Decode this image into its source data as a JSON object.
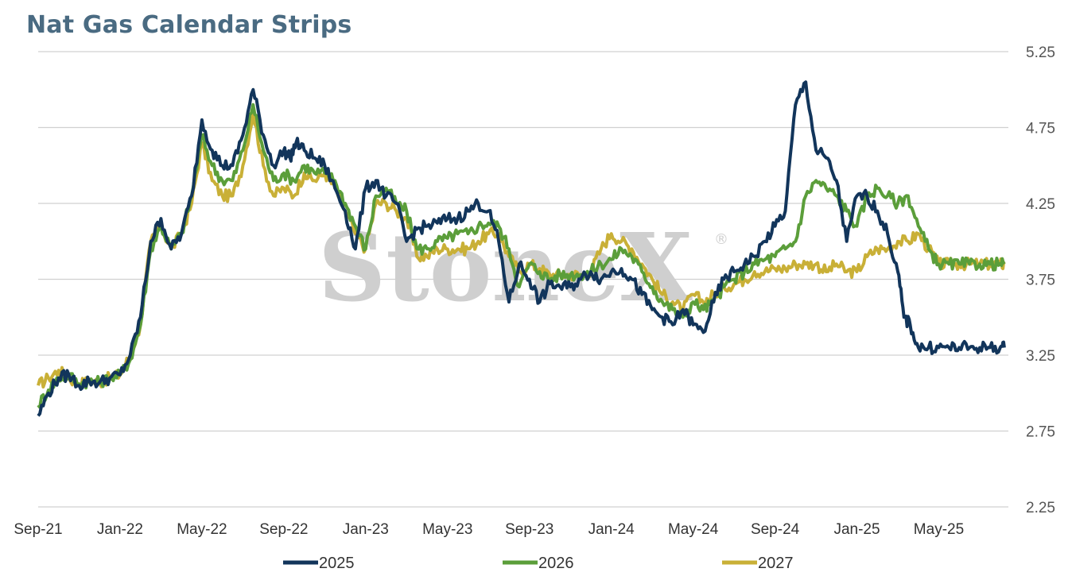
{
  "chart_data": {
    "type": "line",
    "title": "Nat Gas Calendar Strips",
    "watermark": "StoneX",
    "watermark_mark": "®",
    "ylim": [
      2.25,
      5.25
    ],
    "yticks": [
      "5.25",
      "4.75",
      "4.25",
      "3.75",
      "3.25",
      "2.75",
      "2.25"
    ],
    "ytick_values": [
      5.25,
      4.75,
      4.25,
      3.75,
      3.25,
      2.75,
      2.25
    ],
    "xtick_labels": [
      "Sep-21",
      "Jan-22",
      "May-22",
      "Sep-22",
      "Jan-23",
      "May-23",
      "Sep-23",
      "Jan-24",
      "May-24",
      "Sep-24",
      "Jan-25",
      "May-25"
    ],
    "xtick_values": [
      0,
      4,
      8,
      12,
      16,
      20,
      24,
      28,
      32,
      36,
      40,
      44
    ],
    "xlim": [
      0,
      47.4
    ],
    "grid": true,
    "legend_position": "bottom",
    "series": [
      {
        "name": "2025",
        "color": "#12355b",
        "x": [
          0,
          0.5,
          1,
          1.5,
          2,
          2.5,
          3,
          3.5,
          4,
          4.5,
          5,
          5.5,
          6,
          6.5,
          7,
          7.5,
          8,
          8.5,
          9,
          9.5,
          10,
          10.5,
          11,
          11.5,
          12,
          12.3,
          12.6,
          13,
          13.5,
          14,
          14.5,
          15,
          15.5,
          16,
          16.5,
          17,
          17.5,
          18,
          18.5,
          19,
          19.5,
          20,
          20.5,
          21,
          21.5,
          22,
          22.5,
          23,
          23.5,
          24,
          24.5,
          25,
          25.5,
          26,
          26.5,
          27,
          27.5,
          28,
          28.5,
          29,
          29.5,
          30,
          30.5,
          31,
          31.5,
          32,
          32.5,
          33,
          33.5,
          34,
          34.5,
          35,
          35.5,
          36,
          36.5,
          37,
          37.5,
          38,
          38.5,
          39,
          39.5,
          40,
          40.5,
          41,
          41.5,
          42,
          42.3,
          42.6,
          43,
          43.5,
          44,
          44.5,
          45,
          45.5,
          46,
          46.5,
          47,
          47.2
        ],
        "y": [
          2.85,
          3.0,
          3.1,
          3.12,
          3.05,
          3.08,
          3.07,
          3.1,
          3.12,
          3.25,
          3.5,
          4.0,
          4.15,
          3.95,
          4.05,
          4.3,
          4.8,
          4.6,
          4.5,
          4.5,
          4.7,
          5.0,
          4.7,
          4.5,
          4.6,
          4.55,
          4.65,
          4.6,
          4.55,
          4.5,
          4.35,
          4.2,
          3.95,
          4.35,
          4.4,
          4.3,
          4.25,
          4.0,
          4.08,
          4.1,
          4.12,
          4.15,
          4.15,
          4.2,
          4.25,
          4.2,
          4.0,
          3.6,
          3.85,
          3.75,
          3.6,
          3.72,
          3.7,
          3.7,
          3.75,
          3.8,
          3.75,
          3.8,
          3.82,
          3.75,
          3.65,
          3.55,
          3.5,
          3.45,
          3.55,
          3.45,
          3.4,
          3.6,
          3.75,
          3.8,
          3.85,
          3.9,
          4.0,
          4.1,
          4.2,
          4.9,
          5.05,
          4.6,
          4.55,
          4.4,
          4.0,
          4.3,
          4.3,
          4.2,
          4.05,
          3.8,
          3.5,
          3.45,
          3.3,
          3.3,
          3.3,
          3.3,
          3.3,
          3.3,
          3.3,
          3.3,
          3.3,
          3.3
        ],
        "marks": [
          0.0,
          3.0
        ]
      },
      {
        "name": "2026",
        "color": "#5b9e3a",
        "x": [
          0,
          0.5,
          1,
          1.5,
          2,
          2.5,
          3,
          3.5,
          4,
          4.5,
          5,
          5.5,
          6,
          6.5,
          7,
          7.5,
          8,
          8.5,
          9,
          9.5,
          10,
          10.5,
          11,
          11.5,
          12,
          12.5,
          13,
          13.5,
          14,
          14.5,
          15,
          15.5,
          16,
          16.5,
          17,
          17.5,
          18,
          18.5,
          19,
          19.5,
          20,
          20.5,
          21,
          21.5,
          22,
          22.5,
          23,
          23.5,
          24,
          24.5,
          25,
          25.5,
          26,
          26.5,
          27,
          27.5,
          28,
          28.5,
          29,
          29.5,
          30,
          30.5,
          31,
          31.5,
          32,
          32.5,
          33,
          33.5,
          34,
          34.5,
          35,
          35.5,
          36,
          36.5,
          37,
          37.5,
          38,
          38.5,
          39,
          39.5,
          40,
          40.5,
          41,
          41.5,
          42,
          42.5,
          43,
          43.5,
          44,
          44.5,
          45,
          45.5,
          46,
          46.5,
          47,
          47.2
        ],
        "y": [
          2.92,
          3.02,
          3.1,
          3.12,
          3.06,
          3.08,
          3.07,
          3.1,
          3.12,
          3.22,
          3.45,
          3.95,
          4.1,
          3.95,
          4.05,
          4.3,
          4.7,
          4.5,
          4.4,
          4.4,
          4.6,
          4.9,
          4.6,
          4.4,
          4.45,
          4.4,
          4.5,
          4.45,
          4.45,
          4.4,
          4.25,
          4.1,
          3.95,
          4.3,
          4.35,
          4.25,
          4.2,
          3.95,
          3.95,
          4.0,
          4.02,
          4.05,
          4.05,
          4.1,
          4.12,
          4.1,
          3.95,
          3.7,
          3.85,
          3.8,
          3.75,
          3.78,
          3.78,
          3.78,
          3.8,
          3.85,
          3.88,
          3.95,
          3.9,
          3.8,
          3.7,
          3.6,
          3.55,
          3.5,
          3.6,
          3.55,
          3.6,
          3.7,
          3.75,
          3.8,
          3.85,
          3.88,
          3.9,
          3.95,
          4.0,
          4.3,
          4.4,
          4.35,
          4.3,
          4.2,
          4.1,
          4.3,
          4.35,
          4.3,
          4.25,
          4.3,
          4.1,
          3.95,
          3.85,
          3.85,
          3.85,
          3.85,
          3.85,
          3.85,
          3.85,
          3.85
        ]
      },
      {
        "name": "2027",
        "color": "#c9b037",
        "x": [
          0,
          0.5,
          1,
          1.5,
          2,
          2.5,
          3,
          3.5,
          4,
          4.5,
          5,
          5.5,
          6,
          6.5,
          7,
          7.5,
          8,
          8.5,
          9,
          9.5,
          10,
          10.5,
          11,
          11.5,
          12,
          12.5,
          13,
          13.5,
          14,
          14.5,
          15,
          15.5,
          16,
          16.5,
          17,
          17.5,
          18,
          18.5,
          19,
          19.5,
          20,
          20.5,
          21,
          21.5,
          22,
          22.5,
          23,
          23.5,
          24,
          24.5,
          25,
          25.5,
          26,
          26.5,
          27,
          27.5,
          28,
          28.5,
          29,
          29.5,
          30,
          30.5,
          31,
          31.5,
          32,
          32.5,
          33,
          33.5,
          34,
          34.5,
          35,
          35.5,
          36,
          36.5,
          37,
          37.5,
          38,
          38.5,
          39,
          39.5,
          40,
          40.5,
          41,
          41.5,
          42,
          42.5,
          43,
          43.5,
          44,
          44.5,
          45,
          45.5,
          46,
          46.5,
          47,
          47.2
        ],
        "y": [
          3.05,
          3.1,
          3.15,
          3.1,
          3.06,
          3.08,
          3.07,
          3.1,
          3.12,
          3.25,
          3.45,
          4.0,
          4.1,
          3.95,
          4.05,
          4.25,
          4.65,
          4.4,
          4.3,
          4.3,
          4.5,
          4.85,
          4.5,
          4.3,
          4.35,
          4.3,
          4.45,
          4.4,
          4.45,
          4.35,
          4.2,
          4.05,
          3.95,
          4.25,
          4.25,
          4.2,
          4.15,
          3.9,
          3.9,
          3.95,
          3.95,
          3.95,
          3.95,
          4.0,
          4.05,
          4.05,
          3.9,
          3.8,
          3.85,
          3.82,
          3.78,
          3.78,
          3.78,
          3.78,
          3.8,
          3.95,
          4.05,
          4.0,
          3.95,
          3.85,
          3.75,
          3.65,
          3.6,
          3.55,
          3.65,
          3.6,
          3.65,
          3.7,
          3.72,
          3.75,
          3.8,
          3.8,
          3.82,
          3.82,
          3.85,
          3.85,
          3.85,
          3.8,
          3.85,
          3.8,
          3.8,
          3.9,
          3.95,
          3.95,
          4.0,
          4.0,
          4.05,
          3.95,
          3.85,
          3.85,
          3.85,
          3.85,
          3.85,
          3.85,
          3.85,
          3.85
        ]
      }
    ]
  }
}
